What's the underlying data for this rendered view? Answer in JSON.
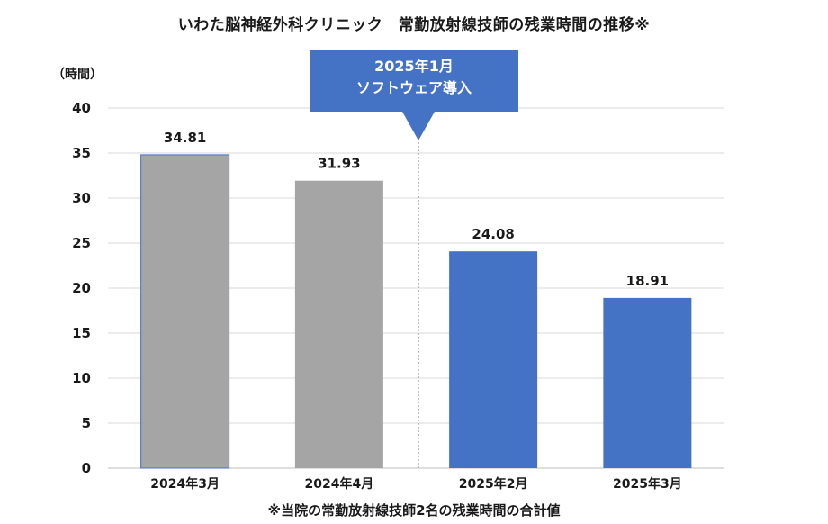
{
  "chart_data": {
    "type": "bar",
    "title": "いわた脳神経外科クリニック　常勤放射線技師の残業時間の推移※",
    "ylabel": "（時間）",
    "xlabel": "",
    "categories": [
      "2024年3月",
      "2024年4月",
      "2025年2月",
      "2025年3月"
    ],
    "values": [
      34.81,
      31.93,
      24.08,
      18.91
    ],
    "data_labels": [
      "34.81",
      "31.93",
      "24.08",
      "18.91"
    ],
    "bar_colors": [
      "#A5A5A5",
      "#A5A5A5",
      "#4472C4",
      "#4472C4"
    ],
    "ylim": [
      0,
      40
    ],
    "yticks": [
      "0",
      "5",
      "10",
      "15",
      "20",
      "25",
      "30",
      "35",
      "40"
    ],
    "grid": true,
    "annotation": {
      "line1": "2025年1月",
      "line2": "ソフトウェア導入",
      "color": "#4472C4"
    },
    "footnote": "※当院の常勤放射線技師2名の残業時間の合計値"
  }
}
